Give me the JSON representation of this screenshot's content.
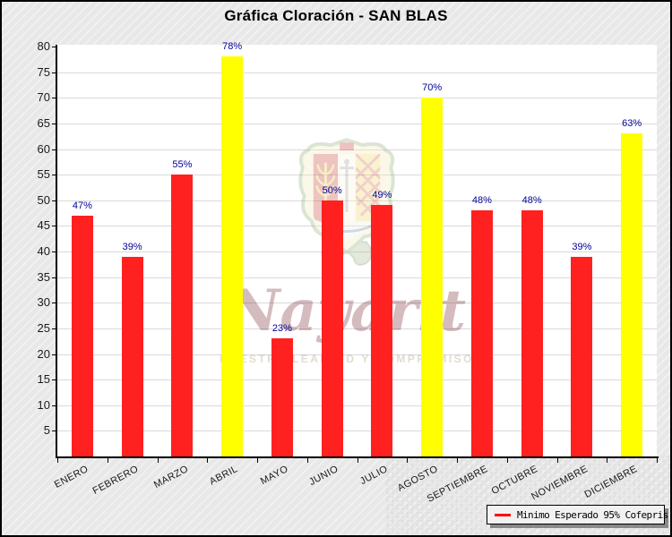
{
  "window": {
    "title": "Gráfica Cloración - SAN BLAS"
  },
  "chart_data": {
    "type": "bar",
    "title": "Gráfica Cloración - SAN BLAS",
    "categories": [
      "ENERO",
      "FEBRERO",
      "MARZO",
      "ABRIL",
      "MAYO",
      "JUNIO",
      "JULIO",
      "AGOSTO",
      "SEPTIEMBRE",
      "OCTUBRE",
      "NOVIEMBRE",
      "DICIEMBRE"
    ],
    "values": [
      47,
      39,
      55,
      78,
      23,
      50,
      49,
      70,
      48,
      48,
      39,
      63
    ],
    "value_labels": [
      "47%",
      "39%",
      "55%",
      "78%",
      "23%",
      "50%",
      "49%",
      "70%",
      "48%",
      "48%",
      "39%",
      "63%"
    ],
    "bar_colors": [
      "#ff2020",
      "#ff2020",
      "#ff2020",
      "#ffff00",
      "#ff2020",
      "#ff2020",
      "#ff2020",
      "#ffff00",
      "#ff2020",
      "#ff2020",
      "#ff2020",
      "#ffff00"
    ],
    "default_color": "#ff2020",
    "highlight_color": "#ffff00",
    "xlabel": "",
    "ylabel": "",
    "ylim": [
      0,
      80
    ],
    "ytick_step": 5,
    "grid": "horizontal",
    "gridline_color": "#d9d9d9",
    "value_label_color": "#000099",
    "legend": {
      "label": "Minimo Esperado 95% Cofepris",
      "swatch_color": "#ff0000",
      "position": "bottom-right"
    }
  },
  "watermark": {
    "name": "escudo-nayarit",
    "script_text": "Nayarit",
    "motto": "NUESTRA LEALTAD Y COMPROMISO"
  },
  "colors": {
    "background": "#ebebeb",
    "plot_background": "#ffffff",
    "axis": "#000000"
  }
}
